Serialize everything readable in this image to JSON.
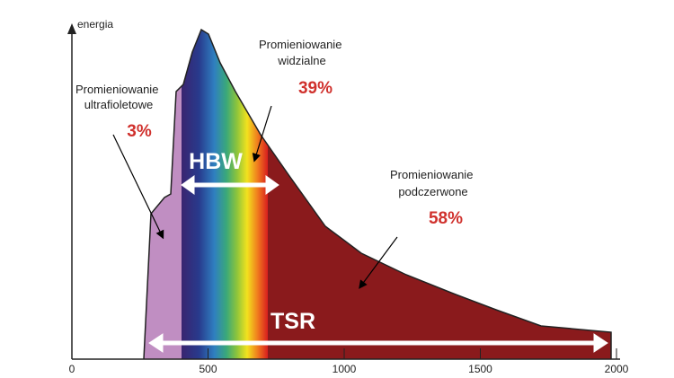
{
  "axis": {
    "y_label": "energia",
    "xticks": [
      0,
      500,
      1000,
      1500,
      2000
    ],
    "xlim": [
      0,
      2000
    ]
  },
  "regions": [
    {
      "lines": [
        "Promieniowanie",
        "ultrafioletowe"
      ],
      "share": "3%"
    },
    {
      "lines": [
        "Promieniowanie",
        "widzialne"
      ],
      "share": "39%"
    },
    {
      "lines": [
        "Promieniowanie",
        "podczerwone"
      ],
      "share": "58%"
    }
  ],
  "hbw": "HBW",
  "tsr": "TSR"
}
